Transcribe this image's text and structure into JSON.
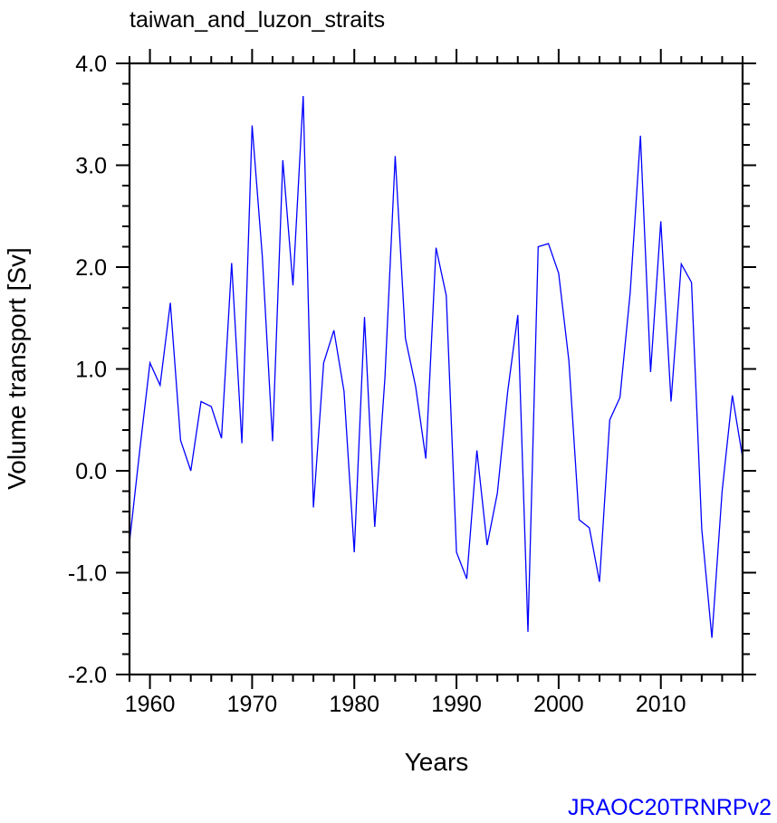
{
  "chart_data": {
    "type": "line",
    "title": "taiwan_and_luzon_straits",
    "xlabel": "Years",
    "ylabel": "Volume transport [Sv]",
    "watermark": "JRAOC20TRNRPv2",
    "xlim": [
      1958,
      2018
    ],
    "ylim": [
      -2.0,
      4.0
    ],
    "xticks": [
      1960,
      1970,
      1980,
      1990,
      2000,
      2010
    ],
    "xtick_labels": [
      "1960",
      "1970",
      "1980",
      "1990",
      "2000",
      "2010"
    ],
    "yticks": [
      -2.0,
      -1.0,
      0.0,
      1.0,
      2.0,
      3.0,
      4.0
    ],
    "ytick_labels": [
      "-2.0",
      "-1.0",
      "0.0",
      "1.0",
      "2.0",
      "3.0",
      "4.0"
    ],
    "grid": false,
    "series_color": "#0000ff",
    "x": [
      1958,
      1959,
      1960,
      1961,
      1962,
      1963,
      1964,
      1965,
      1966,
      1967,
      1968,
      1969,
      1970,
      1971,
      1972,
      1973,
      1974,
      1975,
      1976,
      1977,
      1978,
      1979,
      1980,
      1981,
      1982,
      1983,
      1984,
      1985,
      1986,
      1987,
      1988,
      1989,
      1990,
      1991,
      1992,
      1993,
      1994,
      1995,
      1996,
      1997,
      1998,
      1999,
      2000,
      2001,
      2002,
      2003,
      2004,
      2005,
      2006,
      2007,
      2008,
      2009,
      2010,
      2011,
      2012,
      2013,
      2014,
      2015,
      2016,
      2017,
      2018
    ],
    "y": [
      -0.7,
      0.2,
      1.06,
      0.84,
      1.65,
      0.3,
      0.0,
      0.68,
      0.63,
      0.32,
      2.04,
      0.27,
      3.39,
      2.1,
      0.29,
      3.05,
      1.82,
      3.68,
      -0.36,
      1.06,
      1.38,
      0.78,
      -0.8,
      1.51,
      -0.55,
      0.92,
      3.09,
      1.3,
      0.83,
      0.12,
      2.19,
      1.72,
      -0.8,
      -1.06,
      0.2,
      -0.73,
      -0.22,
      0.77,
      1.53,
      -1.58,
      2.2,
      2.23,
      1.94,
      1.08,
      -0.48,
      -0.56,
      -1.09,
      0.5,
      0.72,
      1.75,
      3.29,
      0.97,
      2.45,
      0.68,
      2.03,
      1.85,
      -0.57,
      -1.64,
      -0.2,
      0.74,
      0.13
    ]
  }
}
